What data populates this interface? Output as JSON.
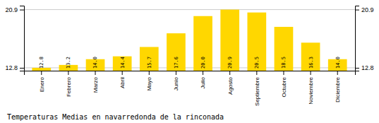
{
  "chart_data": {
    "type": "bar",
    "title": "Temperaturas Medias en navarredonda de la rinconada",
    "categories": [
      "Enero",
      "Febrero",
      "Marzo",
      "Abril",
      "Mayo",
      "Junio",
      "Julio",
      "Agosto",
      "Septiembre",
      "Octubre",
      "Noviembre",
      "Diciembre"
    ],
    "values": [
      12.8,
      13.2,
      14.0,
      14.4,
      15.7,
      17.6,
      20.0,
      20.9,
      20.5,
      18.5,
      16.3,
      14.0
    ],
    "value_labels": [
      "12.8",
      "13.2",
      "14.0",
      "14.4",
      "15.7",
      "17.6",
      "20.0",
      "20.9",
      "20.5",
      "18.5",
      "16.3",
      "14.0"
    ],
    "color": "#FFD700",
    "ylim": [
      12.4,
      21.45
    ],
    "yticks": [
      12.8,
      20.9
    ],
    "grid": true,
    "data_labels": true
  }
}
